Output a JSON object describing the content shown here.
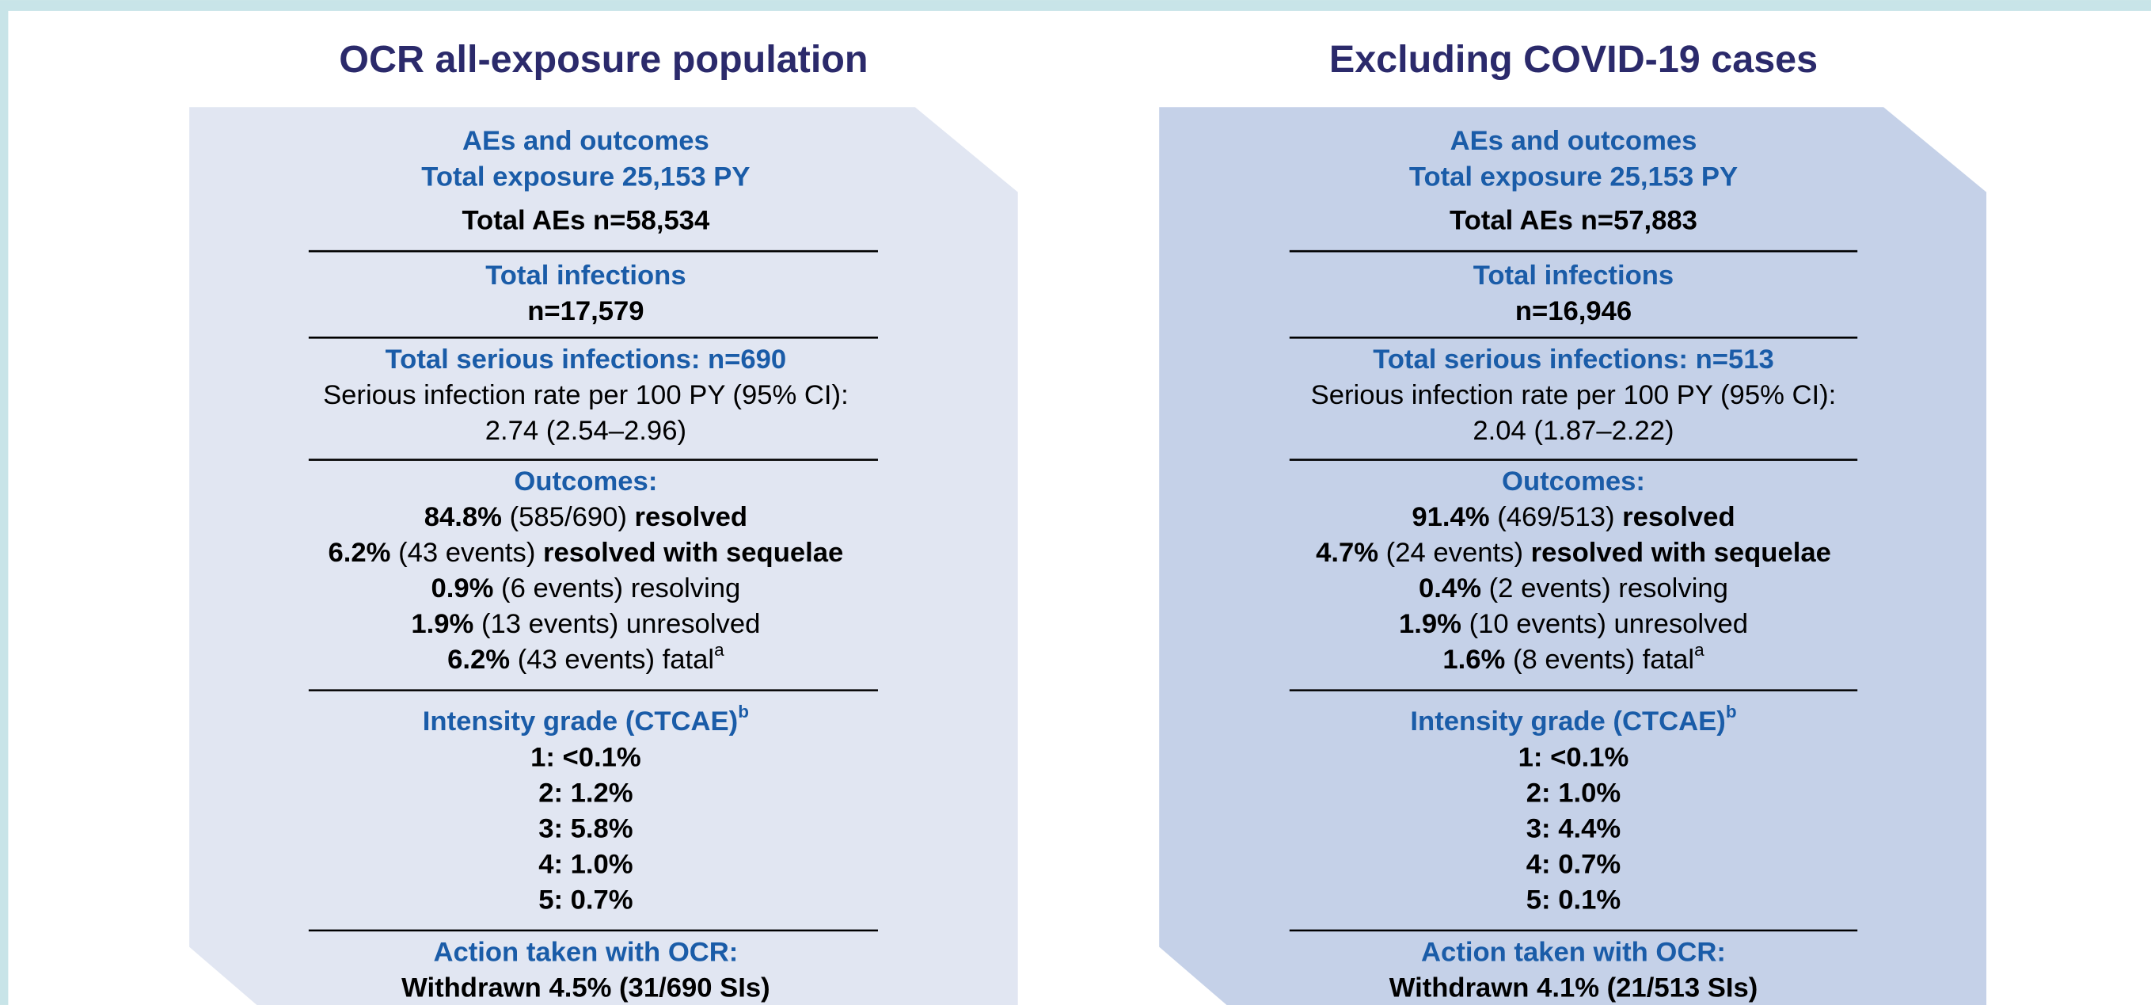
{
  "panels": [
    {
      "title": "OCR all-exposure population",
      "fill": "#e1e6f2",
      "sections": [
        {
          "lines": [
            [
              {
                "text": "AEs and outcomes",
                "style": "heading"
              }
            ],
            [
              {
                "text": "Total exposure 25,153 PY",
                "style": "heading"
              }
            ],
            [
              {
                "text": "Total AEs n=58,534",
                "style": "bold"
              }
            ]
          ]
        },
        {
          "lines": [
            [
              {
                "text": "Total infections",
                "style": "heading"
              }
            ],
            [
              {
                "text": "n=17,579",
                "style": "bold"
              }
            ]
          ]
        },
        {
          "lines": [
            [
              {
                "text": "Total serious infections: n=690",
                "style": "heading"
              }
            ],
            [
              {
                "text": "Serious infection rate per 100 PY (95% CI):",
                "style": "normal"
              }
            ],
            [
              {
                "text": "2.74 (2.54–2.96)",
                "style": "normal"
              }
            ]
          ]
        },
        {
          "lines": [
            [
              {
                "text": "Outcomes:",
                "style": "heading"
              }
            ],
            [
              {
                "text": "84.8%",
                "style": "bold"
              },
              {
                "text": " (585/690) ",
                "style": "normal"
              },
              {
                "text": "resolved",
                "style": "bold"
              }
            ],
            [
              {
                "text": "6.2%",
                "style": "bold"
              },
              {
                "text": " (43 events) ",
                "style": "normal"
              },
              {
                "text": "resolved with sequelae",
                "style": "bold"
              }
            ],
            [
              {
                "text": "0.9%",
                "style": "bold"
              },
              {
                "text": " (6 events) resolving",
                "style": "normal"
              }
            ],
            [
              {
                "text": "1.9%",
                "style": "bold"
              },
              {
                "text": " (13 events) unresolved",
                "style": "normal"
              }
            ],
            [
              {
                "text": "6.2%",
                "style": "bold"
              },
              {
                "text": " (43 events) fatal",
                "style": "normal"
              },
              {
                "text": "a",
                "style": "normal",
                "sup": true
              }
            ]
          ]
        },
        {
          "lines": [
            [
              {
                "text": "Intensity grade (CTCAE)",
                "style": "heading"
              },
              {
                "text": "b",
                "style": "heading",
                "sup": true
              }
            ],
            [
              {
                "text": "1: <0.1%",
                "style": "bold"
              }
            ],
            [
              {
                "text": "2: 1.2%",
                "style": "bold"
              }
            ],
            [
              {
                "text": "3: 5.8%",
                "style": "bold"
              }
            ],
            [
              {
                "text": "4: 1.0%",
                "style": "bold"
              }
            ],
            [
              {
                "text": "5: 0.7%",
                "style": "bold"
              }
            ]
          ]
        },
        {
          "lines": [
            [
              {
                "text": "Action taken with OCR:",
                "style": "heading"
              }
            ],
            [
              {
                "text": "Withdrawn 4.5% (31/690 SIs)",
                "style": "bold"
              }
            ]
          ]
        }
      ]
    },
    {
      "title": "Excluding COVID-19 cases",
      "fill": "#c5d1e8",
      "sections": [
        {
          "lines": [
            [
              {
                "text": "AEs and outcomes",
                "style": "heading"
              }
            ],
            [
              {
                "text": "Total exposure 25,153 PY",
                "style": "heading"
              }
            ],
            [
              {
                "text": "Total AEs n=57,883",
                "style": "bold"
              }
            ]
          ]
        },
        {
          "lines": [
            [
              {
                "text": "Total infections",
                "style": "heading"
              }
            ],
            [
              {
                "text": "n=16,946",
                "style": "bold"
              }
            ]
          ]
        },
        {
          "lines": [
            [
              {
                "text": "Total serious infections: n=513",
                "style": "heading"
              }
            ],
            [
              {
                "text": "Serious infection rate per 100 PY (95% CI):",
                "style": "normal"
              }
            ],
            [
              {
                "text": "2.04 (1.87–2.22)",
                "style": "normal"
              }
            ]
          ]
        },
        {
          "lines": [
            [
              {
                "text": "Outcomes:",
                "style": "heading"
              }
            ],
            [
              {
                "text": "91.4%",
                "style": "bold"
              },
              {
                "text": " (469/513) ",
                "style": "normal"
              },
              {
                "text": "resolved",
                "style": "bold"
              }
            ],
            [
              {
                "text": "4.7%",
                "style": "bold"
              },
              {
                "text": " (24 events) ",
                "style": "normal"
              },
              {
                "text": "resolved with sequelae",
                "style": "bold"
              }
            ],
            [
              {
                "text": "0.4%",
                "style": "bold"
              },
              {
                "text": " (2 events) resolving",
                "style": "normal"
              }
            ],
            [
              {
                "text": "1.9%",
                "style": "bold"
              },
              {
                "text": " (10 events) unresolved",
                "style": "normal"
              }
            ],
            [
              {
                "text": "1.6%",
                "style": "bold"
              },
              {
                "text": " (8 events) fatal",
                "style": "normal"
              },
              {
                "text": "a",
                "style": "normal",
                "sup": true
              }
            ]
          ]
        },
        {
          "lines": [
            [
              {
                "text": "Intensity grade (CTCAE)",
                "style": "heading"
              },
              {
                "text": "b",
                "style": "heading",
                "sup": true
              }
            ],
            [
              {
                "text": "1: <0.1%",
                "style": "bold"
              }
            ],
            [
              {
                "text": "2: 1.0%",
                "style": "bold"
              }
            ],
            [
              {
                "text": "3: 4.4%",
                "style": "bold"
              }
            ],
            [
              {
                "text": "4: 0.7%",
                "style": "bold"
              }
            ],
            [
              {
                "text": "5: 0.1%",
                "style": "bold"
              }
            ]
          ]
        },
        {
          "lines": [
            [
              {
                "text": "Action taken with OCR:",
                "style": "heading"
              }
            ],
            [
              {
                "text": "Withdrawn 4.1% (21/513 SIs)",
                "style": "bold"
              }
            ]
          ]
        }
      ]
    }
  ]
}
